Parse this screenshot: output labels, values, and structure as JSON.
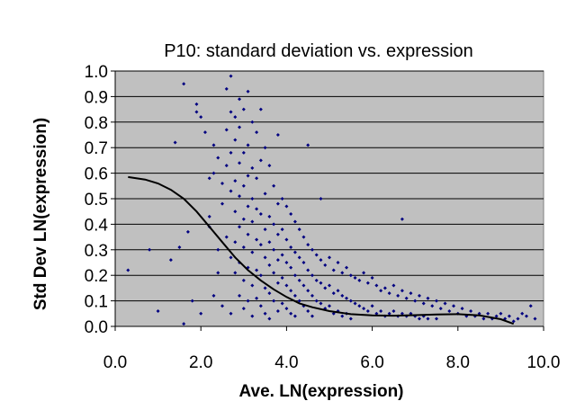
{
  "chart_data": {
    "type": "scatter",
    "title": "P10: standard deviation vs. expression",
    "xlabel": "Ave. LN(expression)",
    "ylabel": "Std Dev LN(expression)",
    "xlim": [
      0,
      10
    ],
    "ylim": [
      0,
      1
    ],
    "x_ticks": [
      "0.0",
      "2.0",
      "4.0",
      "6.0",
      "8.0",
      "10.0"
    ],
    "y_ticks": [
      "0.0",
      "0.1",
      "0.2",
      "0.3",
      "0.4",
      "0.5",
      "0.6",
      "0.7",
      "0.8",
      "0.9",
      "1.0"
    ],
    "grid": "horizontal",
    "plot_background": "#c0c0c0",
    "point_color": "#000080",
    "line_color": "#000000",
    "series": [
      {
        "type": "scatter",
        "points": [
          [
            0.3,
            0.22
          ],
          [
            0.8,
            0.3
          ],
          [
            1.0,
            0.06
          ],
          [
            1.3,
            0.26
          ],
          [
            1.4,
            0.72
          ],
          [
            1.5,
            0.31
          ],
          [
            1.6,
            0.95
          ],
          [
            1.6,
            0.01
          ],
          [
            1.7,
            0.37
          ],
          [
            1.8,
            0.1
          ],
          [
            1.9,
            0.87
          ],
          [
            1.9,
            0.84
          ],
          [
            2.0,
            0.82
          ],
          [
            2.0,
            0.05
          ],
          [
            2.1,
            0.76
          ],
          [
            2.2,
            0.58
          ],
          [
            2.2,
            0.43
          ],
          [
            2.2,
            0.39
          ],
          [
            2.3,
            0.71
          ],
          [
            2.3,
            0.6
          ],
          [
            2.3,
            0.12
          ],
          [
            2.4,
            0.66
          ],
          [
            2.4,
            0.3
          ],
          [
            2.4,
            0.21
          ],
          [
            2.5,
            0.56
          ],
          [
            2.5,
            0.48
          ],
          [
            2.5,
            0.08
          ],
          [
            2.6,
            0.93
          ],
          [
            2.6,
            0.77
          ],
          [
            2.6,
            0.63
          ],
          [
            2.6,
            0.35
          ],
          [
            2.7,
            0.98
          ],
          [
            2.7,
            0.84
          ],
          [
            2.7,
            0.68
          ],
          [
            2.7,
            0.53
          ],
          [
            2.7,
            0.27
          ],
          [
            2.7,
            0.05
          ],
          [
            2.8,
            0.82
          ],
          [
            2.8,
            0.73
          ],
          [
            2.8,
            0.57
          ],
          [
            2.8,
            0.45
          ],
          [
            2.8,
            0.33
          ],
          [
            2.8,
            0.21
          ],
          [
            2.9,
            0.89
          ],
          [
            2.9,
            0.78
          ],
          [
            2.9,
            0.64
          ],
          [
            2.9,
            0.51
          ],
          [
            2.9,
            0.39
          ],
          [
            2.9,
            0.25
          ],
          [
            2.9,
            0.12
          ],
          [
            3.0,
            0.85
          ],
          [
            3.0,
            0.68
          ],
          [
            3.0,
            0.55
          ],
          [
            3.0,
            0.42
          ],
          [
            3.0,
            0.31
          ],
          [
            3.0,
            0.18
          ],
          [
            3.0,
            0.07
          ],
          [
            3.1,
            0.92
          ],
          [
            3.1,
            0.71
          ],
          [
            3.1,
            0.59
          ],
          [
            3.1,
            0.47
          ],
          [
            3.1,
            0.36
          ],
          [
            3.1,
            0.23
          ],
          [
            3.1,
            0.1
          ],
          [
            3.2,
            0.8
          ],
          [
            3.2,
            0.62
          ],
          [
            3.2,
            0.5
          ],
          [
            3.2,
            0.41
          ],
          [
            3.2,
            0.29
          ],
          [
            3.2,
            0.16
          ],
          [
            3.2,
            0.04
          ],
          [
            3.3,
            0.76
          ],
          [
            3.3,
            0.58
          ],
          [
            3.3,
            0.46
          ],
          [
            3.3,
            0.34
          ],
          [
            3.3,
            0.22
          ],
          [
            3.3,
            0.11
          ],
          [
            3.4,
            0.85
          ],
          [
            3.4,
            0.65
          ],
          [
            3.4,
            0.44
          ],
          [
            3.4,
            0.32
          ],
          [
            3.4,
            0.2
          ],
          [
            3.4,
            0.08
          ],
          [
            3.5,
            0.7
          ],
          [
            3.5,
            0.52
          ],
          [
            3.5,
            0.38
          ],
          [
            3.5,
            0.27
          ],
          [
            3.5,
            0.15
          ],
          [
            3.5,
            0.05
          ],
          [
            3.6,
            0.63
          ],
          [
            3.6,
            0.43
          ],
          [
            3.6,
            0.33
          ],
          [
            3.6,
            0.24
          ],
          [
            3.6,
            0.13
          ],
          [
            3.6,
            0.03
          ],
          [
            3.7,
            0.55
          ],
          [
            3.7,
            0.4
          ],
          [
            3.7,
            0.3
          ],
          [
            3.7,
            0.21
          ],
          [
            3.7,
            0.1
          ],
          [
            3.8,
            0.75
          ],
          [
            3.8,
            0.48
          ],
          [
            3.8,
            0.36
          ],
          [
            3.8,
            0.26
          ],
          [
            3.8,
            0.17
          ],
          [
            3.8,
            0.06
          ],
          [
            3.9,
            0.5
          ],
          [
            3.9,
            0.38
          ],
          [
            3.9,
            0.28
          ],
          [
            3.9,
            0.19
          ],
          [
            3.9,
            0.09
          ],
          [
            4.0,
            0.47
          ],
          [
            4.0,
            0.34
          ],
          [
            4.0,
            0.25
          ],
          [
            4.0,
            0.16
          ],
          [
            4.0,
            0.07
          ],
          [
            4.1,
            0.44
          ],
          [
            4.1,
            0.31
          ],
          [
            4.1,
            0.23
          ],
          [
            4.1,
            0.14
          ],
          [
            4.1,
            0.05
          ],
          [
            4.2,
            0.41
          ],
          [
            4.2,
            0.29
          ],
          [
            4.2,
            0.2
          ],
          [
            4.2,
            0.12
          ],
          [
            4.2,
            0.04
          ],
          [
            4.3,
            0.38
          ],
          [
            4.3,
            0.27
          ],
          [
            4.3,
            0.18
          ],
          [
            4.3,
            0.1
          ],
          [
            4.4,
            0.35
          ],
          [
            4.4,
            0.25
          ],
          [
            4.4,
            0.16
          ],
          [
            4.4,
            0.08
          ],
          [
            4.5,
            0.71
          ],
          [
            4.5,
            0.32
          ],
          [
            4.5,
            0.22
          ],
          [
            4.5,
            0.14
          ],
          [
            4.5,
            0.06
          ],
          [
            4.6,
            0.3
          ],
          [
            4.6,
            0.2
          ],
          [
            4.6,
            0.12
          ],
          [
            4.6,
            0.04
          ],
          [
            4.7,
            0.28
          ],
          [
            4.7,
            0.18
          ],
          [
            4.7,
            0.1
          ],
          [
            4.8,
            0.5
          ],
          [
            4.8,
            0.26
          ],
          [
            4.8,
            0.17
          ],
          [
            4.8,
            0.09
          ],
          [
            4.9,
            0.24
          ],
          [
            4.9,
            0.15
          ],
          [
            4.9,
            0.07
          ],
          [
            5.0,
            0.27
          ],
          [
            5.0,
            0.16
          ],
          [
            5.0,
            0.08
          ],
          [
            5.1,
            0.22
          ],
          [
            5.1,
            0.13
          ],
          [
            5.1,
            0.05
          ],
          [
            5.2,
            0.25
          ],
          [
            5.2,
            0.14
          ],
          [
            5.2,
            0.06
          ],
          [
            5.3,
            0.21
          ],
          [
            5.3,
            0.12
          ],
          [
            5.3,
            0.04
          ],
          [
            5.4,
            0.23
          ],
          [
            5.4,
            0.11
          ],
          [
            5.4,
            0.05
          ],
          [
            5.5,
            0.2
          ],
          [
            5.5,
            0.1
          ],
          [
            5.5,
            0.03
          ],
          [
            5.6,
            0.19
          ],
          [
            5.6,
            0.09
          ],
          [
            5.7,
            0.18
          ],
          [
            5.7,
            0.08
          ],
          [
            5.8,
            0.21
          ],
          [
            5.8,
            0.07
          ],
          [
            5.9,
            0.17
          ],
          [
            5.9,
            0.06
          ],
          [
            6.0,
            0.19
          ],
          [
            6.0,
            0.08
          ],
          [
            6.1,
            0.16
          ],
          [
            6.1,
            0.05
          ],
          [
            6.2,
            0.14
          ],
          [
            6.2,
            0.06
          ],
          [
            6.3,
            0.15
          ],
          [
            6.3,
            0.04
          ],
          [
            6.4,
            0.13
          ],
          [
            6.4,
            0.05
          ],
          [
            6.5,
            0.16
          ],
          [
            6.5,
            0.06
          ],
          [
            6.6,
            0.12
          ],
          [
            6.6,
            0.04
          ],
          [
            6.7,
            0.42
          ],
          [
            6.7,
            0.14
          ],
          [
            6.7,
            0.05
          ],
          [
            6.8,
            0.11
          ],
          [
            6.8,
            0.04
          ],
          [
            6.9,
            0.13
          ],
          [
            6.9,
            0.05
          ],
          [
            7.0,
            0.1
          ],
          [
            7.0,
            0.04
          ],
          [
            7.1,
            0.12
          ],
          [
            7.1,
            0.03
          ],
          [
            7.2,
            0.09
          ],
          [
            7.2,
            0.04
          ],
          [
            7.3,
            0.11
          ],
          [
            7.3,
            0.03
          ],
          [
            7.4,
            0.08
          ],
          [
            7.5,
            0.1
          ],
          [
            7.5,
            0.03
          ],
          [
            7.6,
            0.07
          ],
          [
            7.7,
            0.09
          ],
          [
            7.8,
            0.06
          ],
          [
            7.9,
            0.08
          ],
          [
            8.0,
            0.05
          ],
          [
            8.1,
            0.07
          ],
          [
            8.2,
            0.04
          ],
          [
            8.3,
            0.06
          ],
          [
            8.4,
            0.04
          ],
          [
            8.5,
            0.05
          ],
          [
            8.6,
            0.03
          ],
          [
            8.7,
            0.05
          ],
          [
            8.8,
            0.03
          ],
          [
            8.9,
            0.04
          ],
          [
            9.0,
            0.05
          ],
          [
            9.1,
            0.03
          ],
          [
            9.2,
            0.04
          ],
          [
            9.3,
            0.02
          ],
          [
            9.4,
            0.03
          ],
          [
            9.5,
            0.05
          ],
          [
            9.6,
            0.04
          ],
          [
            9.7,
            0.08
          ],
          [
            9.8,
            0.03
          ]
        ]
      },
      {
        "type": "line",
        "points": [
          [
            0.3,
            0.585
          ],
          [
            0.7,
            0.575
          ],
          [
            1.0,
            0.56
          ],
          [
            1.3,
            0.535
          ],
          [
            1.6,
            0.5
          ],
          [
            1.9,
            0.45
          ],
          [
            2.2,
            0.39
          ],
          [
            2.5,
            0.33
          ],
          [
            2.8,
            0.27
          ],
          [
            3.1,
            0.22
          ],
          [
            3.4,
            0.18
          ],
          [
            3.7,
            0.145
          ],
          [
            4.0,
            0.115
          ],
          [
            4.3,
            0.09
          ],
          [
            4.6,
            0.075
          ],
          [
            5.0,
            0.06
          ],
          [
            5.5,
            0.048
          ],
          [
            6.0,
            0.043
          ],
          [
            6.5,
            0.042
          ],
          [
            7.0,
            0.044
          ],
          [
            7.5,
            0.047
          ],
          [
            8.0,
            0.048
          ],
          [
            8.5,
            0.043
          ],
          [
            9.0,
            0.028
          ],
          [
            9.3,
            0.01
          ]
        ]
      }
    ]
  }
}
